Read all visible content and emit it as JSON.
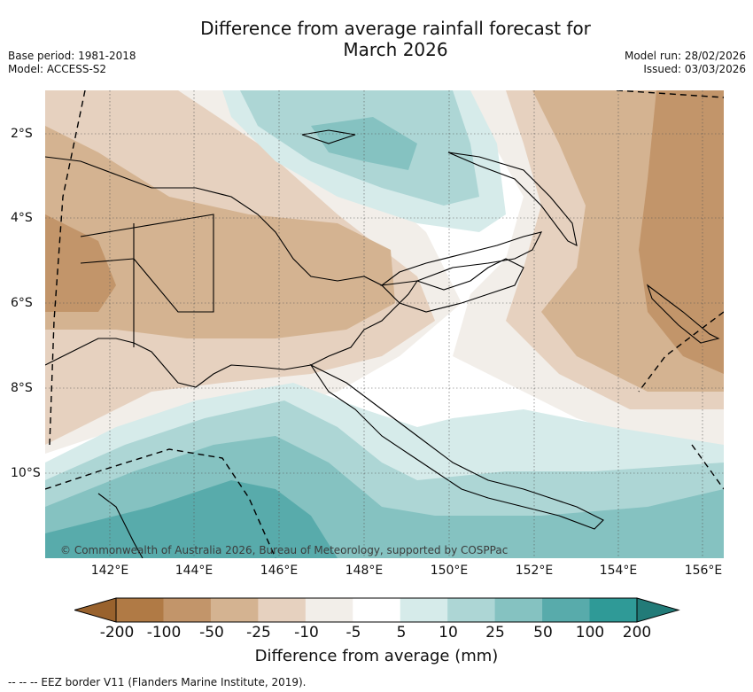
{
  "title_line1": "Difference from average rainfall forecast for",
  "title_line2": "March 2026",
  "base_period": "Base period: 1981-2018",
  "model": "Model: ACCESS-S2",
  "model_run": "Model run: 28/02/2026",
  "issued": "Issued: 03/03/2026",
  "longitude_labels": [
    "142°E",
    "144°E",
    "146°E",
    "148°E",
    "150°E",
    "152°E",
    "154°E",
    "156°E"
  ],
  "latitude_labels": [
    "2°S",
    "4°S",
    "6°S",
    "8°S",
    "10°S"
  ],
  "copyright": "© Commonwealth of Australia 2026, Bureau of Meteorology, supported by COSPPac",
  "colorbar": {
    "ticks": [
      "-200",
      "-100",
      "-50",
      "-25",
      "-10",
      "-5",
      "5",
      "10",
      "25",
      "50",
      "100",
      "200"
    ],
    "colors": [
      "#99622d",
      "#b07a45",
      "#c2956a",
      "#d4b391",
      "#e6d1bf",
      "#f2eee9",
      "#ffffff",
      "#d6ebea",
      "#add6d5",
      "#85c2c1",
      "#58abab",
      "#2f9a97",
      "#227b78"
    ],
    "label": "Difference from average (mm)"
  },
  "legend_note": "--  --  -- EEZ border V11 (Flanders Marine Institute, 2019)."
}
